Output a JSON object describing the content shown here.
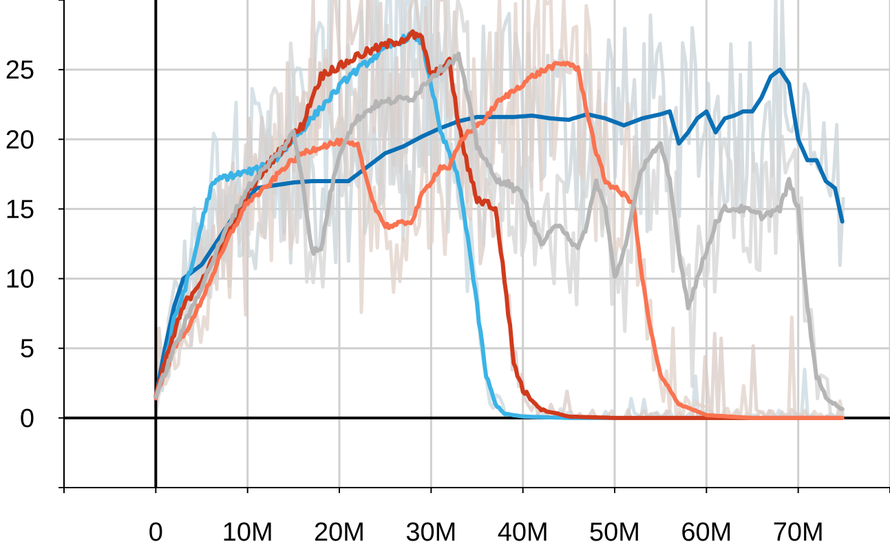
{
  "chart_data": {
    "type": "line",
    "title": "",
    "xlabel": "",
    "ylabel": "",
    "xlim": [
      -10000000,
      80000000
    ],
    "ylim": [
      -5,
      30
    ],
    "x_ticks": [
      0,
      10000000,
      20000000,
      30000000,
      40000000,
      50000000,
      60000000,
      70000000
    ],
    "x_tick_labels": [
      "0",
      "10M",
      "20M",
      "30M",
      "40M",
      "50M",
      "60M",
      "70M"
    ],
    "y_ticks": [
      0,
      5,
      10,
      15,
      20,
      25
    ],
    "y_tick_labels": [
      "0",
      "5",
      "10",
      "15",
      "20",
      "25"
    ],
    "grid": true,
    "legend": "none",
    "series": [
      {
        "color": "#0a6fb5",
        "x": [
          0,
          1,
          2,
          3,
          5,
          7,
          9,
          11,
          13,
          15,
          17,
          19,
          21,
          23,
          25,
          27,
          29,
          31,
          33,
          35,
          37,
          39,
          41,
          43,
          45,
          47,
          49,
          51,
          53,
          55,
          56,
          57,
          58,
          59,
          60,
          61,
          62,
          63,
          64,
          65,
          66,
          67,
          68,
          69,
          70,
          71,
          72,
          73,
          74,
          75
        ],
        "y": [
          1.5,
          5,
          8,
          10,
          11,
          13,
          15,
          16.5,
          16.7,
          16.9,
          17,
          17,
          17,
          18,
          19,
          19.5,
          20.2,
          20.8,
          21.3,
          21.6,
          21.6,
          21.6,
          21.7,
          21.5,
          21.4,
          21.8,
          21.5,
          21,
          21.5,
          21.8,
          22,
          19.7,
          20.5,
          21.5,
          22,
          20.5,
          21.5,
          21.7,
          22,
          22,
          23,
          24.5,
          25,
          24,
          20,
          18.5,
          18.5,
          17,
          16.5,
          13.5
        ],
        "noise": 0
      },
      {
        "color": "#3bb3e6",
        "x": [
          0,
          1,
          2,
          3,
          4,
          5,
          6,
          7,
          9,
          11,
          13,
          15,
          17,
          19,
          21,
          23,
          25,
          27,
          28,
          29,
          30,
          31,
          32,
          33,
          34,
          35,
          36,
          37,
          38,
          40,
          45,
          75
        ],
        "y": [
          1.5,
          4,
          7,
          9,
          11,
          14,
          16.5,
          17.2,
          17.5,
          17.8,
          18.5,
          20,
          21.5,
          23,
          24.5,
          25.5,
          26.5,
          27.2,
          27.5,
          27,
          24,
          20.5,
          19,
          17,
          13,
          8,
          3,
          1,
          0.3,
          0.1,
          0,
          0
        ],
        "noise": 0.25
      },
      {
        "color": "#d03a1c",
        "x": [
          0,
          1,
          2,
          3,
          4,
          5,
          6,
          8,
          10,
          12,
          14,
          16,
          17,
          18,
          19,
          20,
          22,
          24,
          26,
          27,
          28,
          29,
          30,
          31,
          32,
          33,
          34,
          35,
          36,
          37,
          38,
          39,
          40,
          42,
          45,
          50,
          75
        ],
        "y": [
          1.5,
          4,
          6,
          8,
          9,
          10,
          11,
          13.5,
          16,
          18,
          19.5,
          21,
          23,
          24.5,
          25,
          25.2,
          26,
          26.5,
          27,
          27.2,
          27.5,
          27.2,
          24.5,
          25,
          25.5,
          21,
          18,
          15.7,
          15.5,
          15,
          10,
          4,
          2,
          0.6,
          0.1,
          0,
          0
        ],
        "noise": 0.3
      },
      {
        "color": "#fa7350",
        "x": [
          0,
          2,
          4,
          6,
          8,
          10,
          12,
          14,
          16,
          18,
          20,
          22,
          23,
          24,
          25,
          26,
          28,
          29,
          30,
          31,
          32,
          33,
          34,
          35,
          36,
          37,
          39,
          41,
          43,
          45,
          46,
          47,
          48,
          49,
          50,
          51,
          52,
          53,
          54,
          55,
          57,
          60,
          65,
          75
        ],
        "y": [
          1.5,
          5,
          7,
          10,
          13,
          15.5,
          16.5,
          18,
          19,
          19.5,
          19.8,
          19.5,
          17,
          15,
          13.8,
          13.8,
          14.2,
          16,
          17,
          18,
          18,
          19.5,
          20.5,
          21,
          21.5,
          22.5,
          23.5,
          24.5,
          25.2,
          25.5,
          25,
          22,
          19,
          17,
          16.5,
          16,
          15.5,
          10,
          6,
          3,
          1,
          0.2,
          0,
          0
        ],
        "noise": 0.2
      },
      {
        "color": "#b5b5b5",
        "x": [
          0,
          2,
          4,
          6,
          8,
          10,
          12,
          14,
          15,
          16,
          17,
          18,
          19,
          20,
          21,
          22,
          24,
          26,
          28,
          30,
          31,
          32,
          33,
          34,
          35,
          36,
          37,
          38,
          40,
          41,
          42,
          44,
          45,
          46,
          47,
          48,
          49,
          50,
          51,
          52,
          53,
          54,
          55,
          56,
          57,
          58,
          59,
          60,
          61,
          62,
          64,
          66,
          68,
          69,
          70,
          71,
          72,
          73,
          74,
          75
        ],
        "y": [
          1.5,
          5,
          8,
          11,
          14,
          16.5,
          18,
          19.5,
          20.5,
          17,
          12,
          12,
          16,
          19,
          20.5,
          21.5,
          22.5,
          22.8,
          23,
          24.5,
          25,
          25.5,
          26,
          23,
          19.5,
          18.5,
          17,
          17,
          16,
          14,
          12.5,
          14,
          13,
          12,
          14,
          17,
          15,
          10,
          12,
          15,
          18,
          19,
          19.5,
          17,
          12,
          8,
          10,
          12,
          14,
          15,
          15,
          14.5,
          15,
          17,
          15,
          8,
          3,
          1.5,
          1,
          0.5
        ],
        "noise": 0.25
      }
    ]
  }
}
